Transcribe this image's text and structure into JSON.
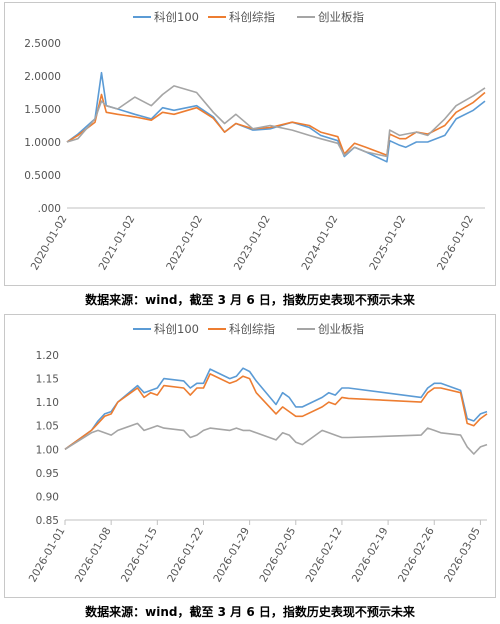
{
  "colors": {
    "kc100": "#5b9bd5",
    "kczz": "#ed7d31",
    "cyb": "#a5a5a5"
  },
  "captions": {
    "top": "数据来源：wind，截至 3 月 6 日，指数历史表现不预示未来",
    "bottom": "数据来源：wind，截至 3 月 6 日，指数历史表现不预示未来"
  },
  "chart_data": [
    {
      "type": "line",
      "legend_position": "top",
      "x_ticks": [
        "2020-01-02",
        "2021-01-02",
        "2022-01-02",
        "2023-01-02",
        "2024-01-02",
        "2025-01-02",
        "2026-01-02"
      ],
      "y_ticks": [
        " .000",
        "0.5000",
        "1.0000",
        "1.5000",
        "2.0000",
        "2.5000"
      ],
      "ylim": [
        0,
        2.5
      ],
      "xlim": [
        "2020-01-02",
        "2026-03-06"
      ],
      "series": [
        {
          "name": "科创100",
          "x": [
            "2020-01-02",
            "2020-03-01",
            "2020-06-01",
            "2020-07-06",
            "2020-08-01",
            "2020-10-01",
            "2021-01-02",
            "2021-04-01",
            "2021-06-01",
            "2021-08-01",
            "2021-12-01",
            "2022-03-01",
            "2022-05-01",
            "2022-07-01",
            "2022-10-01",
            "2023-01-02",
            "2023-05-01",
            "2023-08-01",
            "2023-10-01",
            "2024-01-02",
            "2024-02-06",
            "2024-04-01",
            "2024-06-01",
            "2024-09-23",
            "2024-10-08",
            "2024-12-01",
            "2025-01-02",
            "2025-03-01",
            "2025-05-01",
            "2025-08-01",
            "2025-10-01",
            "2026-01-02",
            "2026-03-06"
          ],
          "y": [
            1.0,
            1.12,
            1.35,
            2.05,
            1.55,
            1.5,
            1.42,
            1.35,
            1.52,
            1.48,
            1.55,
            1.38,
            1.15,
            1.28,
            1.18,
            1.2,
            1.3,
            1.22,
            1.1,
            1.02,
            0.78,
            0.92,
            0.85,
            0.7,
            1.02,
            0.95,
            0.92,
            1.0,
            1.0,
            1.1,
            1.35,
            1.48,
            1.62
          ]
        },
        {
          "name": "科创综指",
          "x": [
            "2020-01-02",
            "2020-03-01",
            "2020-06-01",
            "2020-07-06",
            "2020-08-01",
            "2020-10-01",
            "2021-01-02",
            "2021-04-01",
            "2021-06-01",
            "2021-08-01",
            "2021-12-01",
            "2022-03-01",
            "2022-05-01",
            "2022-07-01",
            "2022-10-01",
            "2023-01-02",
            "2023-05-01",
            "2023-08-01",
            "2023-10-01",
            "2024-01-02",
            "2024-02-06",
            "2024-04-01",
            "2024-06-01",
            "2024-09-23",
            "2024-10-08",
            "2024-12-01",
            "2025-01-02",
            "2025-03-01",
            "2025-05-01",
            "2025-08-01",
            "2025-10-01",
            "2026-01-02",
            "2026-03-06"
          ],
          "y": [
            1.0,
            1.1,
            1.3,
            1.72,
            1.45,
            1.42,
            1.38,
            1.33,
            1.45,
            1.42,
            1.52,
            1.36,
            1.15,
            1.28,
            1.2,
            1.22,
            1.3,
            1.25,
            1.15,
            1.08,
            0.82,
            0.98,
            0.92,
            0.8,
            1.12,
            1.05,
            1.05,
            1.15,
            1.12,
            1.25,
            1.45,
            1.6,
            1.75
          ]
        },
        {
          "name": "创业板指",
          "x": [
            "2020-01-02",
            "2020-03-01",
            "2020-06-01",
            "2020-07-06",
            "2020-08-01",
            "2020-10-01",
            "2021-01-02",
            "2021-04-01",
            "2021-06-01",
            "2021-08-01",
            "2021-12-01",
            "2022-03-01",
            "2022-05-01",
            "2022-07-01",
            "2022-10-01",
            "2023-01-02",
            "2023-05-01",
            "2023-08-01",
            "2023-10-01",
            "2024-01-02",
            "2024-02-06",
            "2024-04-01",
            "2024-06-01",
            "2024-09-23",
            "2024-10-08",
            "2024-12-01",
            "2025-01-02",
            "2025-03-01",
            "2025-05-01",
            "2025-08-01",
            "2025-10-01",
            "2026-01-02",
            "2026-03-06"
          ],
          "y": [
            1.0,
            1.05,
            1.35,
            1.62,
            1.55,
            1.5,
            1.68,
            1.55,
            1.72,
            1.85,
            1.75,
            1.45,
            1.28,
            1.42,
            1.2,
            1.25,
            1.18,
            1.1,
            1.05,
            0.98,
            0.8,
            0.92,
            0.85,
            0.78,
            1.18,
            1.1,
            1.12,
            1.15,
            1.1,
            1.35,
            1.55,
            1.7,
            1.82
          ]
        }
      ]
    },
    {
      "type": "line",
      "legend_position": "top",
      "x_ticks": [
        "2026-01-01",
        "2026-01-08",
        "2026-01-15",
        "2026-01-22",
        "2026-01-29",
        "2026-02-05",
        "2026-02-12",
        "2026-02-19",
        "2026-02-26",
        "2026-03-05"
      ],
      "y_ticks": [
        "0.85",
        "0.90",
        "0.95",
        "1.00",
        "1.05",
        "1.10",
        "1.15",
        "1.20"
      ],
      "ylim": [
        0.85,
        1.2
      ],
      "xlim": [
        "2026-01-01",
        "2026-03-06"
      ],
      "series": [
        {
          "name": "科创100",
          "x": [
            "2026-01-01",
            "2026-01-05",
            "2026-01-06",
            "2026-01-07",
            "2026-01-08",
            "2026-01-09",
            "2026-01-12",
            "2026-01-13",
            "2026-01-14",
            "2026-01-15",
            "2026-01-16",
            "2026-01-19",
            "2026-01-20",
            "2026-01-21",
            "2026-01-22",
            "2026-01-23",
            "2026-01-26",
            "2026-01-27",
            "2026-01-28",
            "2026-01-29",
            "2026-01-30",
            "2026-02-02",
            "2026-02-03",
            "2026-02-04",
            "2026-02-05",
            "2026-02-06",
            "2026-02-09",
            "2026-02-10",
            "2026-02-11",
            "2026-02-12",
            "2026-02-13",
            "2026-02-24",
            "2026-02-25",
            "2026-02-26",
            "2026-02-27",
            "2026-03-02",
            "2026-03-03",
            "2026-03-04",
            "2026-03-05",
            "2026-03-06"
          ],
          "y": [
            1.0,
            1.04,
            1.06,
            1.075,
            1.08,
            1.1,
            1.135,
            1.12,
            1.125,
            1.13,
            1.15,
            1.145,
            1.13,
            1.14,
            1.14,
            1.17,
            1.15,
            1.155,
            1.172,
            1.165,
            1.145,
            1.095,
            1.12,
            1.11,
            1.09,
            1.09,
            1.11,
            1.12,
            1.115,
            1.13,
            1.13,
            1.11,
            1.13,
            1.14,
            1.14,
            1.125,
            1.065,
            1.06,
            1.075,
            1.08
          ]
        },
        {
          "name": "科创综指",
          "x": [
            "2026-01-01",
            "2026-01-05",
            "2026-01-06",
            "2026-01-07",
            "2026-01-08",
            "2026-01-09",
            "2026-01-12",
            "2026-01-13",
            "2026-01-14",
            "2026-01-15",
            "2026-01-16",
            "2026-01-19",
            "2026-01-20",
            "2026-01-21",
            "2026-01-22",
            "2026-01-23",
            "2026-01-26",
            "2026-01-27",
            "2026-01-28",
            "2026-01-29",
            "2026-01-30",
            "2026-02-02",
            "2026-02-03",
            "2026-02-04",
            "2026-02-05",
            "2026-02-06",
            "2026-02-09",
            "2026-02-10",
            "2026-02-11",
            "2026-02-12",
            "2026-02-13",
            "2026-02-24",
            "2026-02-25",
            "2026-02-26",
            "2026-02-27",
            "2026-03-02",
            "2026-03-03",
            "2026-03-04",
            "2026-03-05",
            "2026-03-06"
          ],
          "y": [
            1.0,
            1.04,
            1.055,
            1.07,
            1.075,
            1.1,
            1.13,
            1.11,
            1.12,
            1.115,
            1.135,
            1.13,
            1.115,
            1.13,
            1.13,
            1.16,
            1.14,
            1.145,
            1.155,
            1.15,
            1.12,
            1.075,
            1.09,
            1.08,
            1.07,
            1.07,
            1.09,
            1.1,
            1.095,
            1.11,
            1.108,
            1.1,
            1.12,
            1.13,
            1.13,
            1.12,
            1.055,
            1.05,
            1.065,
            1.075
          ]
        },
        {
          "name": "创业板指",
          "x": [
            "2026-01-01",
            "2026-01-05",
            "2026-01-06",
            "2026-01-07",
            "2026-01-08",
            "2026-01-09",
            "2026-01-12",
            "2026-01-13",
            "2026-01-14",
            "2026-01-15",
            "2026-01-16",
            "2026-01-19",
            "2026-01-20",
            "2026-01-21",
            "2026-01-22",
            "2026-01-23",
            "2026-01-26",
            "2026-01-27",
            "2026-01-28",
            "2026-01-29",
            "2026-01-30",
            "2026-02-02",
            "2026-02-03",
            "2026-02-04",
            "2026-02-05",
            "2026-02-06",
            "2026-02-09",
            "2026-02-10",
            "2026-02-11",
            "2026-02-12",
            "2026-02-13",
            "2026-02-24",
            "2026-02-25",
            "2026-02-26",
            "2026-02-27",
            "2026-03-02",
            "2026-03-03",
            "2026-03-04",
            "2026-03-05",
            "2026-03-06"
          ],
          "y": [
            1.0,
            1.035,
            1.04,
            1.035,
            1.03,
            1.04,
            1.055,
            1.04,
            1.045,
            1.05,
            1.045,
            1.04,
            1.025,
            1.03,
            1.04,
            1.045,
            1.04,
            1.045,
            1.04,
            1.04,
            1.035,
            1.02,
            1.035,
            1.03,
            1.015,
            1.01,
            1.04,
            1.035,
            1.03,
            1.025,
            1.025,
            1.03,
            1.045,
            1.04,
            1.035,
            1.03,
            1.005,
            0.99,
            1.005,
            1.01
          ]
        }
      ]
    }
  ]
}
